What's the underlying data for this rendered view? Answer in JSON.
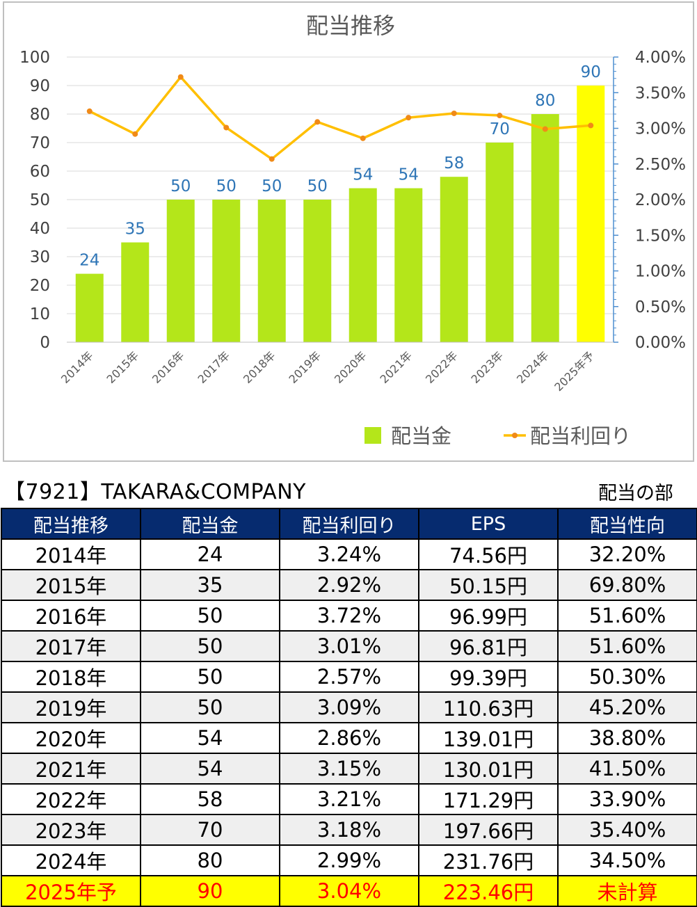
{
  "chart_data": {
    "type": "bar+line",
    "title": "配当推移",
    "categories": [
      "2014年",
      "2015年",
      "2016年",
      "2017年",
      "2018年",
      "2019年",
      "2020年",
      "2021年",
      "2022年",
      "2023年",
      "2024年",
      "2025年予"
    ],
    "series": [
      {
        "name": "配当金",
        "type": "bar",
        "axis": "left",
        "values": [
          24,
          35,
          50,
          50,
          50,
          50,
          54,
          54,
          58,
          70,
          80,
          90
        ]
      },
      {
        "name": "配当利回り",
        "type": "line",
        "axis": "right",
        "values": [
          3.24,
          2.92,
          3.72,
          3.01,
          2.57,
          3.09,
          2.86,
          3.15,
          3.21,
          3.18,
          2.99,
          3.04
        ]
      }
    ],
    "left_ticks": [
      "0",
      "10",
      "20",
      "30",
      "40",
      "50",
      "60",
      "70",
      "80",
      "90",
      "100"
    ],
    "right_ticks": [
      "0.00%",
      "0.50%",
      "1.00%",
      "1.50%",
      "2.00%",
      "2.50%",
      "3.00%",
      "3.50%",
      "4.00%"
    ],
    "ylim_left": [
      0,
      100
    ],
    "ylim_right": [
      0,
      4
    ],
    "grid": true,
    "legend_position": "bottom-right",
    "colors": {
      "bar": "#b4e61a",
      "bar_forecast": "#ffff00",
      "line": "#ffbf00",
      "marker": "#f08a18",
      "data_label": "#2e75b6",
      "right_axis": "#4f8fd0",
      "grid": "#d9d9d9"
    }
  },
  "table": {
    "title": "【7921】TAKARA&COMPANY",
    "section_label": "配当の部",
    "headers": [
      "配当推移",
      "配当金",
      "配当利回り",
      "EPS",
      "配当性向"
    ],
    "rows": [
      [
        "2014年",
        "24",
        "3.24%",
        "74.56円",
        "32.20%"
      ],
      [
        "2015年",
        "35",
        "2.92%",
        "50.15円",
        "69.80%"
      ],
      [
        "2016年",
        "50",
        "3.72%",
        "96.99円",
        "51.60%"
      ],
      [
        "2017年",
        "50",
        "3.01%",
        "96.81円",
        "51.60%"
      ],
      [
        "2018年",
        "50",
        "2.57%",
        "99.39円",
        "50.30%"
      ],
      [
        "2019年",
        "50",
        "3.09%",
        "110.63円",
        "45.20%"
      ],
      [
        "2020年",
        "54",
        "2.86%",
        "139.01円",
        "38.80%"
      ],
      [
        "2021年",
        "54",
        "3.15%",
        "130.01円",
        "41.50%"
      ],
      [
        "2022年",
        "58",
        "3.21%",
        "171.29円",
        "33.90%"
      ],
      [
        "2023年",
        "70",
        "3.18%",
        "197.66円",
        "35.40%"
      ],
      [
        "2024年",
        "80",
        "2.99%",
        "231.76円",
        "34.50%"
      ],
      [
        "2025年予",
        "90",
        "3.04%",
        "223.46円",
        "未計算"
      ]
    ],
    "colors": {
      "header_bg": "#062b6f",
      "zebra": "#efefef",
      "forecast_bg": "#ffff00",
      "forecast_text": "#ff0000"
    }
  }
}
